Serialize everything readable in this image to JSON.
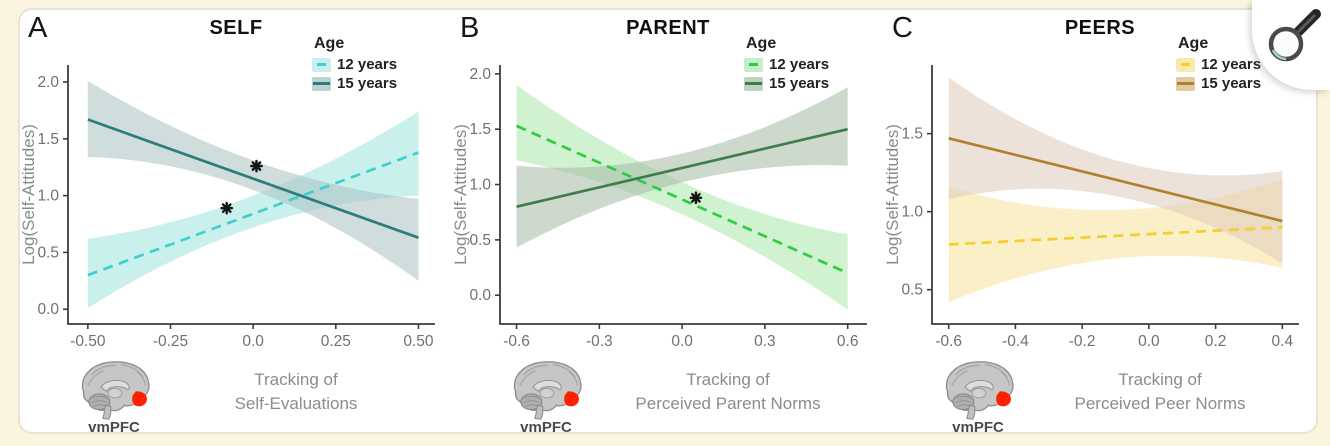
{
  "app": {
    "background_color": "#FBF5DF",
    "card_background": "#FFFFFF",
    "card_border_color": "#E6E2D4"
  },
  "zoom_sticker": {
    "icon": "magnifier-icon"
  },
  "chart_data": [
    {
      "type": "line",
      "panel_label": "A",
      "title": "SELF",
      "xlabel_lines": [
        "Tracking of",
        "Self-Evaluations"
      ],
      "ylabel": "Log(Self-Attitudes)",
      "region_label": "vmPFC",
      "legend": {
        "title": "Age",
        "position": "top-right"
      },
      "grid": false,
      "xlim": [
        -0.56,
        0.55
      ],
      "ylim": [
        -0.13,
        2.15
      ],
      "xticks": [
        -0.5,
        -0.25,
        0,
        0.25,
        0.5
      ],
      "xtick_labels": [
        "-0.50",
        "-0.25",
        "0.0",
        "0.25",
        "0.50"
      ],
      "yticks": [
        0,
        0.5,
        1,
        1.5,
        2
      ],
      "ytick_labels": [
        "0.0",
        "0.5",
        "1.0",
        "1.5",
        "2.0"
      ],
      "series": [
        {
          "name": "12 years",
          "line_style": "dashed",
          "color": "#3FCFCF",
          "band_color": "#9EE3E0",
          "swatch_color": "#C9EFED",
          "x": [
            -0.5,
            0.5
          ],
          "y": [
            0.3,
            1.38
          ],
          "ci_x": [
            -0.5,
            0.0,
            0.5
          ],
          "ci_lo": [
            0.01,
            0.72,
            1.0
          ],
          "ci_hi": [
            0.62,
            1.0,
            1.74
          ]
        },
        {
          "name": "15 years",
          "line_style": "solid",
          "color": "#2C7C7C",
          "band_color": "#A7C1C1",
          "swatch_color": "#BDD3D3",
          "x": [
            -0.5,
            0.5
          ],
          "y": [
            1.67,
            0.63
          ],
          "ci_x": [
            -0.5,
            0.0,
            0.5
          ],
          "ci_lo": [
            1.34,
            1.05,
            0.25
          ],
          "ci_hi": [
            2.01,
            1.31,
            0.97
          ]
        }
      ],
      "significance_markers": [
        {
          "x": 0.01,
          "y": 1.26,
          "symbol": "*"
        },
        {
          "x": -0.08,
          "y": 0.89,
          "symbol": "*"
        }
      ]
    },
    {
      "type": "line",
      "panel_label": "B",
      "title": "PARENT",
      "xlabel_lines": [
        "Tracking of",
        "Perceived Parent Norms"
      ],
      "ylabel": "Log(Self-Attitudes)",
      "region_label": "vmPFC",
      "legend": {
        "title": "Age",
        "position": "top-right"
      },
      "grid": false,
      "xlim": [
        -0.66,
        0.67
      ],
      "ylim": [
        -0.26,
        2.08
      ],
      "xticks": [
        -0.6,
        -0.3,
        0,
        0.3,
        0.6
      ],
      "xtick_labels": [
        "-0.6",
        "-0.3",
        "0.0",
        "0.3",
        "0.6"
      ],
      "yticks": [
        0,
        0.5,
        1,
        1.5,
        2
      ],
      "ytick_labels": [
        "0.0",
        "0.5",
        "1.0",
        "1.5",
        "2.0"
      ],
      "series": [
        {
          "name": "12 years",
          "line_style": "dashed",
          "color": "#2BCE43",
          "band_color": "#ACE7AC",
          "swatch_color": "#C5EFC8",
          "x": [
            -0.6,
            0.6
          ],
          "y": [
            1.53,
            0.2
          ],
          "ci_x": [
            -0.6,
            0.0,
            0.6
          ],
          "ci_lo": [
            1.22,
            0.73,
            -0.13
          ],
          "ci_hi": [
            1.9,
            1.02,
            0.55
          ]
        },
        {
          "name": "15 years",
          "line_style": "solid",
          "color": "#3F7D4B",
          "band_color": "#A5B9A5",
          "swatch_color": "#C2D2C2",
          "x": [
            -0.6,
            0.6
          ],
          "y": [
            0.8,
            1.5
          ],
          "ci_x": [
            -0.6,
            0.0,
            0.6
          ],
          "ci_lo": [
            0.43,
            1.02,
            1.17
          ],
          "ci_hi": [
            1.17,
            1.28,
            1.88
          ]
        }
      ],
      "significance_markers": [
        {
          "x": 0.05,
          "y": 0.88,
          "symbol": "*"
        }
      ]
    },
    {
      "type": "line",
      "panel_label": "C",
      "title": "PEERS",
      "xlabel_lines": [
        "Tracking of",
        "Perceived Peer Norms"
      ],
      "ylabel": "Log(Self-Attitudes)",
      "region_label": "vmPFC",
      "legend": {
        "title": "Age",
        "position": "top-right"
      },
      "grid": false,
      "xlim": [
        -0.65,
        0.45
      ],
      "ylim": [
        0.28,
        1.94
      ],
      "xticks": [
        -0.6,
        -0.4,
        -0.2,
        0,
        0.2,
        0.4
      ],
      "xtick_labels": [
        "-0.6",
        "-0.4",
        "-0.2",
        "0.0",
        "0.2",
        "0.4"
      ],
      "yticks": [
        0.5,
        1,
        1.5
      ],
      "ytick_labels": [
        "0.5",
        "1.0",
        "1.5"
      ],
      "series": [
        {
          "name": "12 years",
          "line_style": "dashed",
          "color": "#F7CE2D",
          "band_color": "#F5E199",
          "swatch_color": "#F8E9AC",
          "x": [
            -0.6,
            0.4
          ],
          "y": [
            0.79,
            0.9
          ],
          "ci_x": [
            -0.6,
            -0.1,
            0.4
          ],
          "ci_lo": [
            0.42,
            0.7,
            0.64
          ],
          "ci_hi": [
            1.16,
            1.01,
            1.21
          ]
        },
        {
          "name": "15 years",
          "line_style": "solid",
          "color": "#B0812F",
          "band_color": "#DFCBB9",
          "swatch_color": "#E2CBA4",
          "x": [
            -0.6,
            0.4
          ],
          "y": [
            1.47,
            0.94
          ],
          "ci_x": [
            -0.6,
            -0.1,
            0.4
          ],
          "ci_lo": [
            1.08,
            1.1,
            0.67
          ],
          "ci_hi": [
            1.86,
            1.33,
            1.26
          ]
        }
      ],
      "significance_markers": []
    }
  ]
}
